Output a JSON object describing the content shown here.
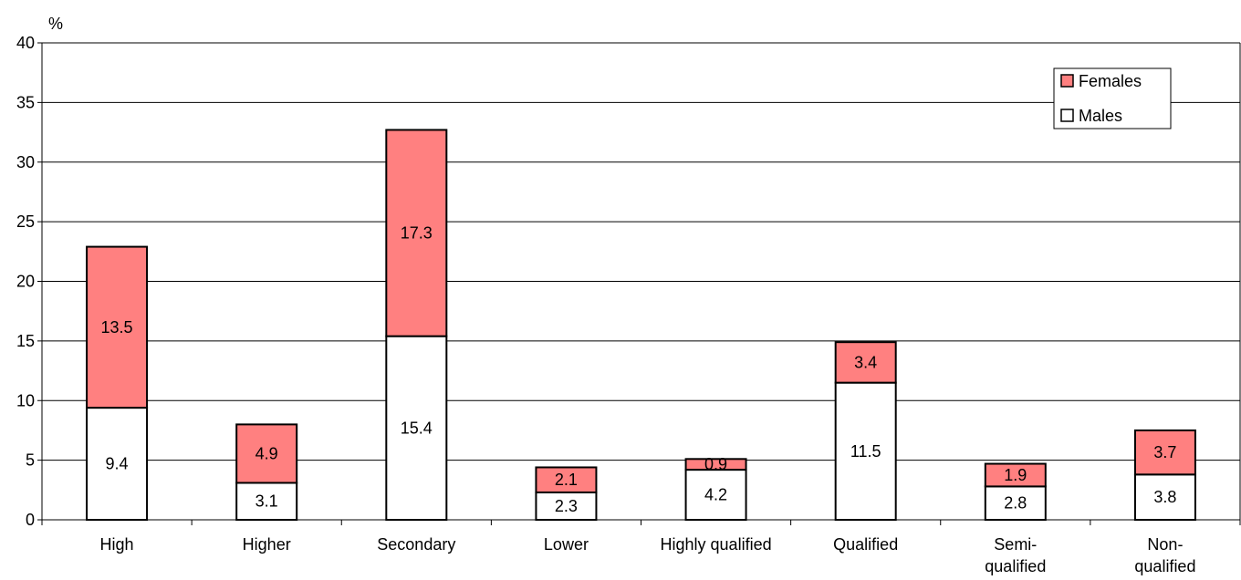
{
  "chart_data": {
    "type": "bar",
    "stacked": true,
    "y_unit_label": "%",
    "ylim": [
      0,
      40
    ],
    "y_ticks": [
      0,
      5,
      10,
      15,
      20,
      25,
      30,
      35,
      40
    ],
    "grid": true,
    "legend_position": "top-right",
    "categories": [
      [
        "High"
      ],
      [
        "Higher"
      ],
      [
        "Secondary"
      ],
      [
        "Lower"
      ],
      [
        "Highly qualified"
      ],
      [
        "Qualified"
      ],
      [
        "Semi-",
        "qualified"
      ],
      [
        "Non-",
        "qualified"
      ]
    ],
    "series": [
      {
        "name": "Males",
        "color": "#ffffff",
        "values": [
          9.4,
          3.1,
          15.4,
          2.3,
          4.2,
          11.5,
          2.8,
          3.8
        ],
        "labels": [
          "9.4",
          "3.1",
          "15.4",
          "2.3",
          "4.2",
          "11.5",
          "2.8",
          "3.8"
        ]
      },
      {
        "name": "Females",
        "color": "#ff8080",
        "values": [
          13.5,
          4.9,
          17.3,
          2.1,
          0.9,
          3.4,
          1.9,
          3.7
        ],
        "labels": [
          "13.5",
          "4.9",
          "17.3",
          "2.1",
          "0.9",
          "3.4",
          "1.9",
          "3.7"
        ]
      }
    ]
  }
}
